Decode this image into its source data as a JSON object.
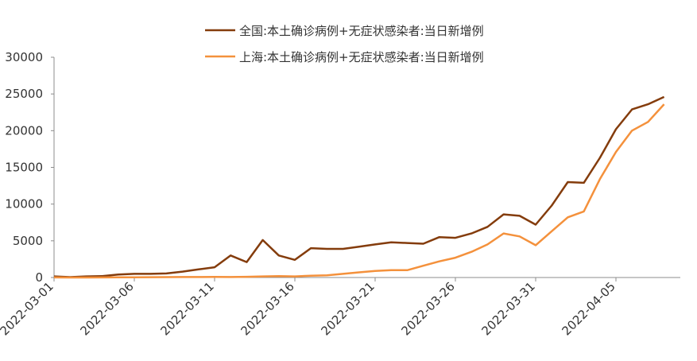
{
  "chart_data": {
    "type": "line",
    "title": "",
    "xlabel": "",
    "ylabel": "",
    "x": [
      "2022-03-01",
      "2022-03-02",
      "2022-03-03",
      "2022-03-04",
      "2022-03-05",
      "2022-03-06",
      "2022-03-07",
      "2022-03-08",
      "2022-03-09",
      "2022-03-10",
      "2022-03-11",
      "2022-03-12",
      "2022-03-13",
      "2022-03-14",
      "2022-03-15",
      "2022-03-16",
      "2022-03-17",
      "2022-03-18",
      "2022-03-19",
      "2022-03-20",
      "2022-03-21",
      "2022-03-22",
      "2022-03-23",
      "2022-03-24",
      "2022-03-25",
      "2022-03-26",
      "2022-03-27",
      "2022-03-28",
      "2022-03-29",
      "2022-03-30",
      "2022-03-31",
      "2022-04-01",
      "2022-04-02",
      "2022-04-03",
      "2022-04-04",
      "2022-04-05",
      "2022-04-06",
      "2022-04-07",
      "2022-04-08"
    ],
    "xticks": [
      "2022-03-01",
      "2022-03-06",
      "2022-03-11",
      "2022-03-16",
      "2022-03-21",
      "2022-03-26",
      "2022-03-31",
      "2022-04-05"
    ],
    "ylim": [
      0,
      30000
    ],
    "yticks": [
      "0",
      "5000",
      "10000",
      "15000",
      "20000",
      "25000",
      "30000"
    ],
    "grid": false,
    "legend_position": "top-center",
    "series": [
      {
        "name": "全国:本土确诊病例+无症状感染者:当日新增例",
        "color": "#843C0C",
        "values": [
          150,
          50,
          150,
          200,
          400,
          500,
          500,
          550,
          800,
          1100,
          1400,
          3000,
          2100,
          5100,
          3000,
          2400,
          4000,
          3900,
          3900,
          4200,
          4500,
          4800,
          4700,
          4600,
          5500,
          5400,
          6000,
          6900,
          8600,
          8400,
          7200,
          9800,
          13000,
          12900,
          16300,
          20200,
          22900,
          23600,
          24600
        ]
      },
      {
        "name": "上海:本土确诊病例+无症状感染者:当日新增例",
        "color": "#F4913C",
        "values": [
          10,
          5,
          5,
          10,
          20,
          30,
          40,
          50,
          60,
          70,
          80,
          60,
          100,
          150,
          200,
          150,
          250,
          300,
          500,
          700,
          900,
          1000,
          1000,
          1600,
          2200,
          2700,
          3500,
          4500,
          6000,
          5600,
          4400,
          6300,
          8200,
          9000,
          13400,
          17100,
          20000,
          21200,
          23600
        ]
      }
    ]
  }
}
